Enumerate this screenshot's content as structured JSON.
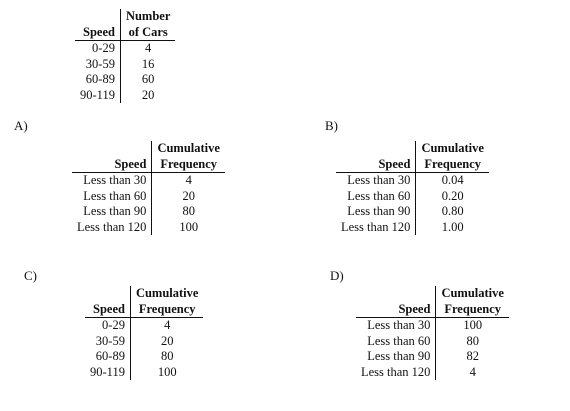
{
  "question_table": {
    "col1_header": "Speed",
    "col2_header_line1": "Number",
    "col2_header_line2": "of Cars",
    "rows": [
      {
        "speed": "0-29",
        "value": "4"
      },
      {
        "speed": "30-59",
        "value": "16"
      },
      {
        "speed": "60-89",
        "value": "60"
      },
      {
        "speed": "90-119",
        "value": "20"
      }
    ]
  },
  "options": [
    {
      "label": "A)",
      "col1_header": "Speed",
      "col2_header_line1": "Cumulative",
      "col2_header_line2": "Frequency",
      "rows": [
        {
          "speed": "Less than 30",
          "value": "4"
        },
        {
          "speed": "Less than 60",
          "value": "20"
        },
        {
          "speed": "Less than 90",
          "value": "80"
        },
        {
          "speed": "Less than 120",
          "value": "100"
        }
      ]
    },
    {
      "label": "B)",
      "col1_header": "Speed",
      "col2_header_line1": "Cumulative",
      "col2_header_line2": "Frequency",
      "rows": [
        {
          "speed": "Less than 30",
          "value": "0.04"
        },
        {
          "speed": "Less than 60",
          "value": "0.20"
        },
        {
          "speed": "Less than 90",
          "value": "0.80"
        },
        {
          "speed": "Less than 120",
          "value": "1.00"
        }
      ]
    },
    {
      "label": "C)",
      "col1_header": "Speed",
      "col2_header_line1": "Cumulative",
      "col2_header_line2": "Frequency",
      "rows": [
        {
          "speed": "0-29",
          "value": "4"
        },
        {
          "speed": "30-59",
          "value": "20"
        },
        {
          "speed": "60-89",
          "value": "80"
        },
        {
          "speed": "90-119",
          "value": "100"
        }
      ]
    },
    {
      "label": "D)",
      "col1_header": "Speed",
      "col2_header_line1": "Cumulative",
      "col2_header_line2": "Frequency",
      "rows": [
        {
          "speed": "Less than 30",
          "value": "100"
        },
        {
          "speed": "Less than 60",
          "value": "80"
        },
        {
          "speed": "Less than 90",
          "value": "82"
        },
        {
          "speed": "Less than 120",
          "value": "4"
        }
      ]
    }
  ]
}
